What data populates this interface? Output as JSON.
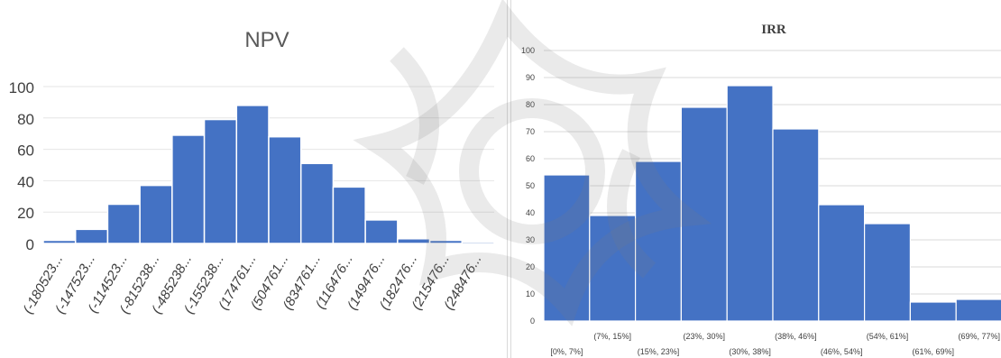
{
  "chart_data": [
    {
      "type": "bar",
      "title": "NPV",
      "categories": [
        "(-180523...",
        "(-147523...",
        "(-114523...",
        "(-815238...",
        "(-485238...",
        "(-155238...",
        "(174761...",
        "(504761...",
        "(834761...",
        "(116476...",
        "(149476...",
        "(182476...",
        "(215476...",
        "(248476..."
      ],
      "values": [
        2,
        9,
        25,
        37,
        69,
        79,
        88,
        68,
        51,
        36,
        15,
        3,
        2,
        1
      ],
      "yticks": [
        "0",
        "20",
        "40",
        "60",
        "80",
        "100"
      ],
      "ylim": [
        0,
        100
      ],
      "grid": true,
      "bar_color": "#4472c4"
    },
    {
      "type": "bar",
      "title": "IRR",
      "categories": [
        "[0%, 7%]",
        "(7%, 15%]",
        "(15%, 23%]",
        "(23%, 30%]",
        "(30%, 38%]",
        "(38%, 46%]",
        "(46%, 54%]",
        "(54%, 61%]",
        "(61%, 69%]",
        "(69%, 77%]"
      ],
      "values": [
        54,
        39,
        59,
        79,
        87,
        71,
        43,
        36,
        7,
        8
      ],
      "yticks": [
        "0",
        "10",
        "20",
        "30",
        "40",
        "50",
        "60",
        "70",
        "80",
        "90",
        "100"
      ],
      "ylim": [
        0,
        100
      ],
      "grid": true,
      "bar_color": "#4472c4"
    }
  ]
}
